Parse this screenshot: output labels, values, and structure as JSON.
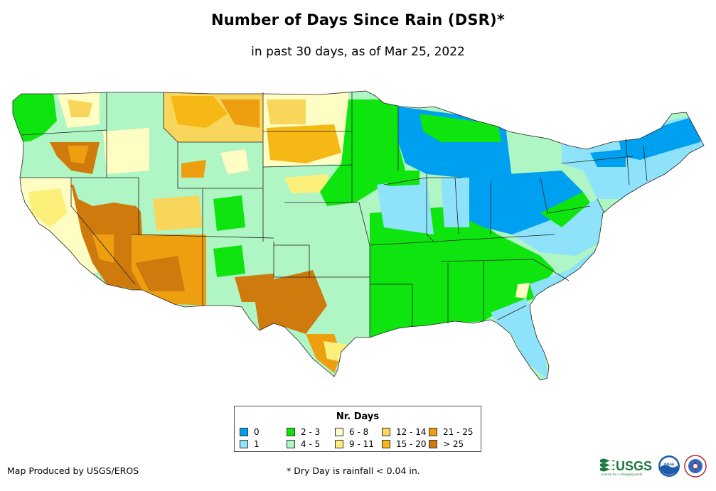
{
  "header": {
    "title": "Number of Days Since Rain (DSR)*",
    "subtitle": "in past 30 days, as of Mar 25, 2022"
  },
  "legend": {
    "title": "Nr. Days",
    "items": [
      {
        "label": "0",
        "color": "#00a0f0"
      },
      {
        "label": "1",
        "color": "#8ee2fa"
      },
      {
        "label": "2 - 3",
        "color": "#0ee40e"
      },
      {
        "label": "4 - 5",
        "color": "#b0f5c4"
      },
      {
        "label": "6 - 8",
        "color": "#fefdc4"
      },
      {
        "label": "9 - 11",
        "color": "#fcf07a"
      },
      {
        "label": "12 - 14",
        "color": "#f8d65c"
      },
      {
        "label": "15 - 20",
        "color": "#f5b814"
      },
      {
        "label": "21 - 25",
        "color": "#ee9f10"
      },
      {
        "label": "> 25",
        "color": "#cf7a0c"
      }
    ]
  },
  "footer": {
    "producer": "Map Produced by USGS/EROS",
    "footnote": "* Dry Day is rainfall < 0.04 in."
  },
  "logos": {
    "usgs_text": "USGS",
    "usgs_tagline": "science for a changing world",
    "noaa_text": "noaa"
  }
}
